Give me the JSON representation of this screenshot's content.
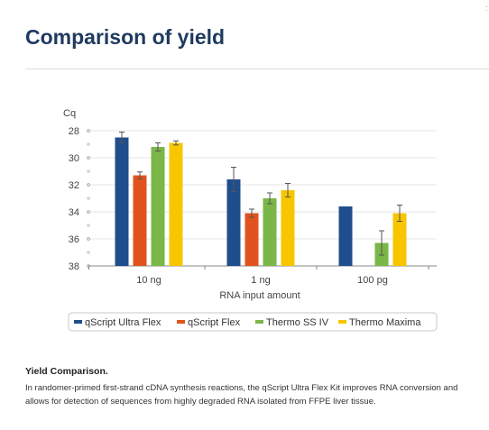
{
  "page": {
    "heading": "Comparison of yield",
    "corner_mark": ":"
  },
  "chart_data": {
    "type": "bar",
    "ylabel": "Cq",
    "xlabel": "RNA input amount",
    "categories": [
      "10 ng",
      "1 ng",
      "100 pg"
    ],
    "yticks": [
      28,
      30,
      32,
      34,
      36,
      38
    ],
    "ylim": [
      38,
      28
    ],
    "y_inverted": true,
    "grid": true,
    "legend_position": "bottom",
    "series": [
      {
        "name": "qScript Ultra Flex",
        "color": "#1f4e8c",
        "values": [
          28.5,
          31.6,
          33.6
        ],
        "errors": [
          0.4,
          0.9,
          0
        ]
      },
      {
        "name": "qScript Flex",
        "color": "#e0531f",
        "values": [
          31.3,
          34.1,
          null
        ],
        "errors": [
          0.25,
          0.3,
          null
        ]
      },
      {
        "name": "Thermo SS IV",
        "color": "#7ab648",
        "values": [
          29.2,
          33.0,
          36.3
        ],
        "errors": [
          0.3,
          0.4,
          0.9
        ]
      },
      {
        "name": "Thermo Maxima",
        "color": "#f7c600",
        "values": [
          28.9,
          32.4,
          34.1
        ],
        "errors": [
          0.15,
          0.5,
          0.6
        ]
      }
    ]
  },
  "caption": {
    "title": "Yield Comparison.",
    "text": "In randomer-primed first-strand cDNA synthesis reactions, the qScript Ultra Flex Kit improves RNA conversion and allows for detection of sequences from highly degraded RNA isolated from FFPE liver tissue."
  }
}
